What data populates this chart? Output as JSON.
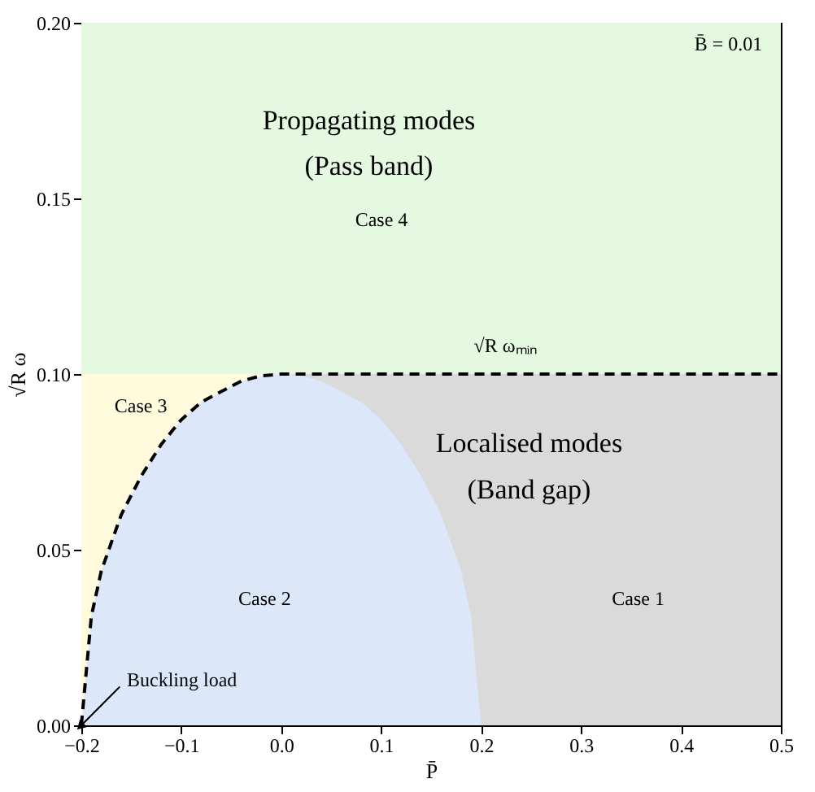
{
  "chart_data": {
    "type": "area",
    "xlabel": "P̄",
    "ylabel": "√R ω",
    "xlim": [
      -0.2,
      0.5
    ],
    "ylim": [
      0,
      0.2
    ],
    "xticks": [
      {
        "value": -0.2,
        "label": "−0.2"
      },
      {
        "value": -0.1,
        "label": "−0.1"
      },
      {
        "value": 0,
        "label": "0.0"
      },
      {
        "value": 0.1,
        "label": "0.1"
      },
      {
        "value": 0.2,
        "label": "0.2"
      },
      {
        "value": 0.3,
        "label": "0.3"
      },
      {
        "value": 0.4,
        "label": "0.4"
      },
      {
        "value": 0.5,
        "label": "0.5"
      }
    ],
    "yticks": [
      {
        "value": 0,
        "label": "0.00"
      },
      {
        "value": 0.05,
        "label": "0.05"
      },
      {
        "value": 0.1,
        "label": "0.10"
      },
      {
        "value": 0.15,
        "label": "0.15"
      },
      {
        "value": 0.2,
        "label": "0.20"
      }
    ],
    "grid": false,
    "bands": [
      {
        "axis": "y",
        "from": 0.1,
        "to": 0.2,
        "color": "#e4f9e0"
      }
    ],
    "series": [
      {
        "color": "#dadada",
        "x": [
          0.01,
          0.5
        ],
        "values": [
          0.1,
          0.1
        ]
      },
      {
        "color": "#fffbdc",
        "x": [
          -0.2,
          0.01
        ],
        "values": [
          0.1,
          0.1
        ]
      },
      {
        "color": "#dce8fa",
        "x": [
          -0.2,
          -0.19,
          -0.18,
          -0.16,
          -0.14,
          -0.12,
          -0.1,
          -0.08,
          -0.06,
          -0.04,
          -0.02,
          0,
          0.02,
          0.04,
          0.06,
          0.08,
          0.1,
          0.12,
          0.14,
          0.16,
          0.18,
          0.19,
          0.2
        ],
        "values": [
          0,
          0.031,
          0.044,
          0.06,
          0.071,
          0.08,
          0.087,
          0.092,
          0.095,
          0.098,
          0.0995,
          0.1,
          0.0995,
          0.098,
          0.095,
          0.092,
          0.087,
          0.08,
          0.071,
          0.06,
          0.044,
          0.031,
          0
        ]
      },
      {
        "type": "line",
        "color": "#000000",
        "line_style": "dashed",
        "x": [
          -0.2,
          -0.19,
          -0.18,
          -0.16,
          -0.14,
          -0.12,
          -0.1,
          -0.08,
          -0.06,
          -0.04,
          -0.02,
          0,
          0.5
        ],
        "values": [
          0,
          0.031,
          0.044,
          0.06,
          0.071,
          0.08,
          0.087,
          0.092,
          0.095,
          0.098,
          0.0995,
          0.1,
          0.1
        ]
      }
    ],
    "annotations": [
      "B̄ = 0.01",
      "Propagating modes",
      "(Pass band)",
      "Case 4",
      "√R ωₘᵢₙ",
      "Case 3",
      "Localised modes",
      "(Band gap)",
      "Case 2",
      "Case 1",
      {
        "text": "Buckling load",
        "x": -0.2,
        "y": 0
      }
    ]
  }
}
